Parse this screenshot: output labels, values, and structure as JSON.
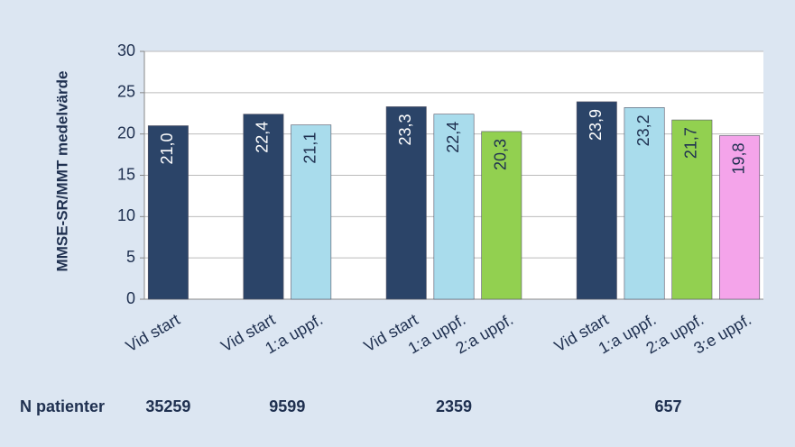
{
  "chart_data": {
    "type": "bar",
    "y_label": "MMSE-SR/MMT medelvärde",
    "ylim": [
      0,
      30
    ],
    "yticks": [
      0,
      5,
      10,
      15,
      20,
      25,
      30
    ],
    "grid": true,
    "colors": [
      "#2b4468",
      "#a9dcec",
      "#92d050",
      "#f4a4ea"
    ],
    "label_colors": [
      "#ffffff",
      "#1f3050",
      "#1f3050",
      "#1f3050"
    ],
    "n_label": "N patienter",
    "groups": [
      {
        "n": 35259,
        "categories": [
          "Vid start"
        ],
        "values": [
          21.0
        ],
        "value_labels": [
          "21,0"
        ]
      },
      {
        "n": 9599,
        "categories": [
          "Vid start",
          "1:a uppf."
        ],
        "values": [
          22.4,
          21.1
        ],
        "value_labels": [
          "22,4",
          "21,1"
        ]
      },
      {
        "n": 2359,
        "categories": [
          "Vid start",
          "1:a uppf.",
          "2:a uppf."
        ],
        "values": [
          23.3,
          22.4,
          20.3
        ],
        "value_labels": [
          "23,3",
          "22,4",
          "20,3"
        ]
      },
      {
        "n": 657,
        "categories": [
          "Vid start",
          "1:a uppf.",
          "2:a uppf.",
          "3:e uppf."
        ],
        "values": [
          23.9,
          23.2,
          21.7,
          19.8
        ],
        "value_labels": [
          "23,9",
          "23,2",
          "21,7",
          "19,8"
        ]
      }
    ]
  }
}
